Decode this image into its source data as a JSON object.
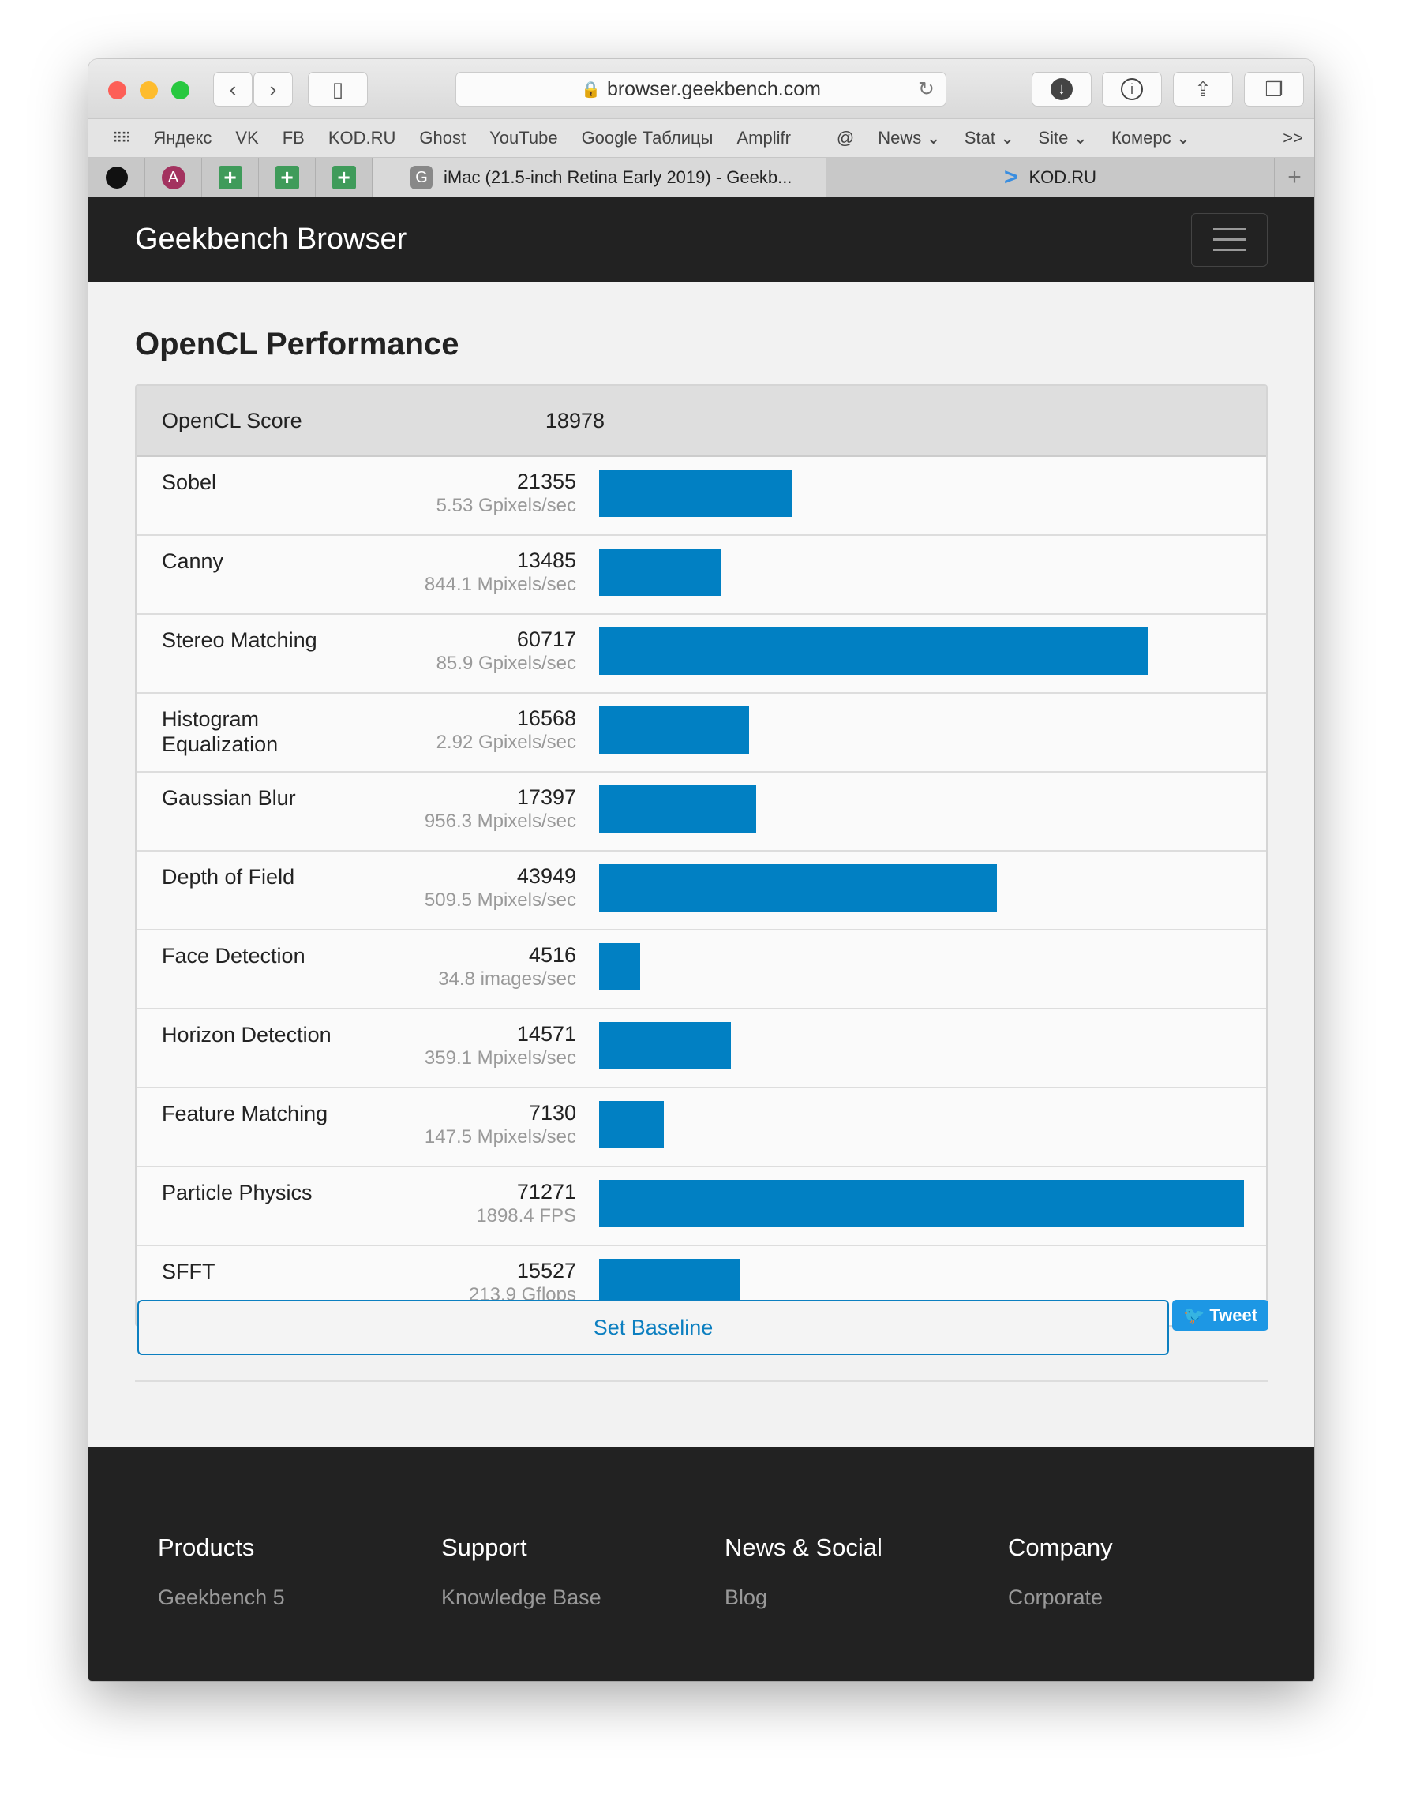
{
  "browser": {
    "url": "browser.geekbench.com",
    "bookmarks": [
      "Яндекс",
      "VK",
      "FB",
      "KOD.RU",
      "Ghost",
      "YouTube",
      "Google Таблицы",
      "Amplifr",
      "@",
      "News ⌄",
      "Stat ⌄",
      "Site ⌄",
      "Комерс ⌄"
    ],
    "overflow": ">>",
    "tabs": [
      {
        "label": "iMac (21.5-inch Retina Early 2019) - Geekb...",
        "favicon": "G"
      },
      {
        "label": "KOD.RU"
      }
    ],
    "pinned_letter": "A"
  },
  "navbar": {
    "brand": "Geekbench Browser"
  },
  "page": {
    "title": "OpenCL Performance",
    "score_label": "OpenCL Score",
    "score": "18978",
    "max_value": 71271,
    "rows": [
      {
        "name": "Sobel",
        "score": "21355",
        "unit": "5.53 Gpixels/sec",
        "value": 21355
      },
      {
        "name": "Canny",
        "score": "13485",
        "unit": "844.1 Mpixels/sec",
        "value": 13485
      },
      {
        "name": "Stereo Matching",
        "score": "60717",
        "unit": "85.9 Gpixels/sec",
        "value": 60717
      },
      {
        "name": "Histogram Equalization",
        "score": "16568",
        "unit": "2.92 Gpixels/sec",
        "value": 16568
      },
      {
        "name": "Gaussian Blur",
        "score": "17397",
        "unit": "956.3 Mpixels/sec",
        "value": 17397
      },
      {
        "name": "Depth of Field",
        "score": "43949",
        "unit": "509.5 Mpixels/sec",
        "value": 43949
      },
      {
        "name": "Face Detection",
        "score": "4516",
        "unit": "34.8 images/sec",
        "value": 4516
      },
      {
        "name": "Horizon Detection",
        "score": "14571",
        "unit": "359.1 Mpixels/sec",
        "value": 14571
      },
      {
        "name": "Feature Matching",
        "score": "7130",
        "unit": "147.5 Mpixels/sec",
        "value": 7130
      },
      {
        "name": "Particle Physics",
        "score": "71271",
        "unit": "1898.4 FPS",
        "value": 71271
      },
      {
        "name": "SFFT",
        "score": "15527",
        "unit": "213.9 Gflops",
        "value": 15527
      }
    ],
    "set_baseline": "Set Baseline",
    "tweet": "Tweet"
  },
  "footer": {
    "columns": [
      {
        "heading": "Products",
        "link": "Geekbench 5"
      },
      {
        "heading": "Support",
        "link": "Knowledge Base"
      },
      {
        "heading": "News & Social",
        "link": "Blog"
      },
      {
        "heading": "Company",
        "link": "Corporate"
      }
    ]
  },
  "colors": {
    "bar": "#0180c3",
    "tweet": "#1d97e4",
    "navbar": "#222222"
  }
}
